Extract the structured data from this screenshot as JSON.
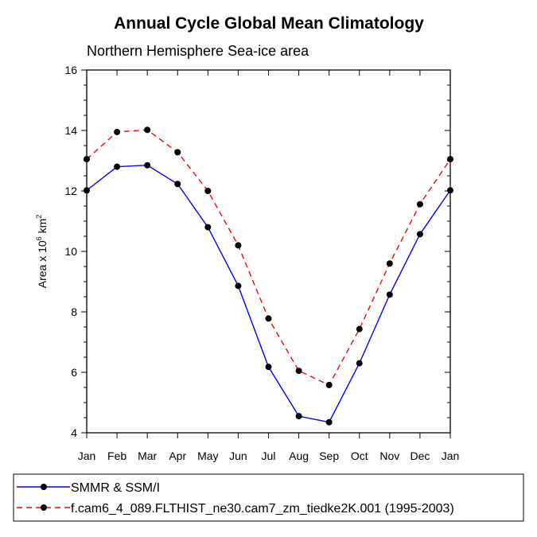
{
  "chart_data": {
    "type": "line",
    "title": "Annual Cycle Global Mean Climatology",
    "subtitle": "Northern Hemisphere Sea-ice area",
    "ylabel": {
      "prefix": "Area x 10",
      "exponent": "6",
      "unit": " km",
      "unit_exponent": "2"
    },
    "xlabel": "",
    "categories": [
      "Jan",
      "Feb",
      "Mar",
      "Apr",
      "May",
      "Jun",
      "Jul",
      "Aug",
      "Sep",
      "Oct",
      "Nov",
      "Dec",
      "Jan"
    ],
    "ylim": [
      4,
      16
    ],
    "yticks": [
      4,
      6,
      8,
      10,
      12,
      14,
      16
    ],
    "legend_position": "bottom",
    "series": [
      {
        "name": "SMMR & SSM/I",
        "color": "#0000ff",
        "dashed": false,
        "values": [
          12.02,
          12.8,
          12.85,
          12.23,
          10.8,
          8.86,
          6.18,
          4.55,
          4.35,
          6.3,
          8.57,
          10.57,
          12.02
        ]
      },
      {
        "name": "f.cam6_4_089.FLTHIST_ne30.cam7_zm_tiedke2K.001 (1995-2003)",
        "color": "#ff0000",
        "dashed": true,
        "values": [
          13.05,
          13.95,
          14.02,
          13.28,
          12.0,
          10.2,
          7.78,
          6.05,
          5.58,
          7.43,
          9.6,
          11.56,
          13.05
        ]
      }
    ]
  }
}
